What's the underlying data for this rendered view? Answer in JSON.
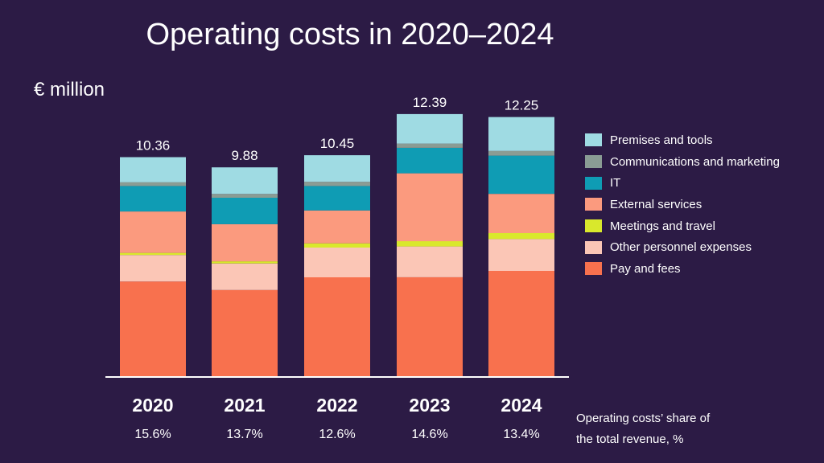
{
  "title": "Operating costs in 2020–2024",
  "unit_label": "€ million",
  "share_note": {
    "line1": "Operating costs’ share of",
    "line2": "the total revenue, %"
  },
  "chart_data": {
    "type": "bar",
    "stacked": true,
    "title": "Operating costs in 2020–2024",
    "ylabel": "€ million",
    "xlabel": "",
    "ylim": [
      0,
      13
    ],
    "grid": false,
    "legend_position": "right",
    "categories": [
      "2020",
      "2021",
      "2022",
      "2023",
      "2024"
    ],
    "totals": [
      "10.36",
      "9.88",
      "10.45",
      "12.39",
      "12.25"
    ],
    "share_of_revenue": [
      "15.6%",
      "13.7%",
      "12.6%",
      "14.6%",
      "13.4%"
    ],
    "series": [
      {
        "name": "Pay and fees",
        "color": "#f8714e",
        "values": [
          4.5,
          4.1,
          4.7,
          4.7,
          5.0
        ]
      },
      {
        "name": "Other personnel expenses",
        "color": "#fbc6b6",
        "values": [
          1.25,
          1.25,
          1.4,
          1.45,
          1.5
        ]
      },
      {
        "name": "Meetings and travel",
        "color": "#d9e82c",
        "values": [
          0.1,
          0.1,
          0.2,
          0.25,
          0.28
        ]
      },
      {
        "name": "External services",
        "color": "#fb9a7e",
        "values": [
          1.95,
          1.75,
          1.55,
          3.2,
          1.85
        ]
      },
      {
        "name": "IT",
        "color": "#0f9cb4",
        "values": [
          1.2,
          1.25,
          1.15,
          1.2,
          1.8
        ]
      },
      {
        "name": "Communications and marketing",
        "color": "#8a9c94",
        "values": [
          0.18,
          0.18,
          0.2,
          0.2,
          0.22
        ]
      },
      {
        "name": "Premises and tools",
        "color": "#9fdbe3",
        "values": [
          1.18,
          1.25,
          1.25,
          1.39,
          1.6
        ]
      }
    ]
  }
}
